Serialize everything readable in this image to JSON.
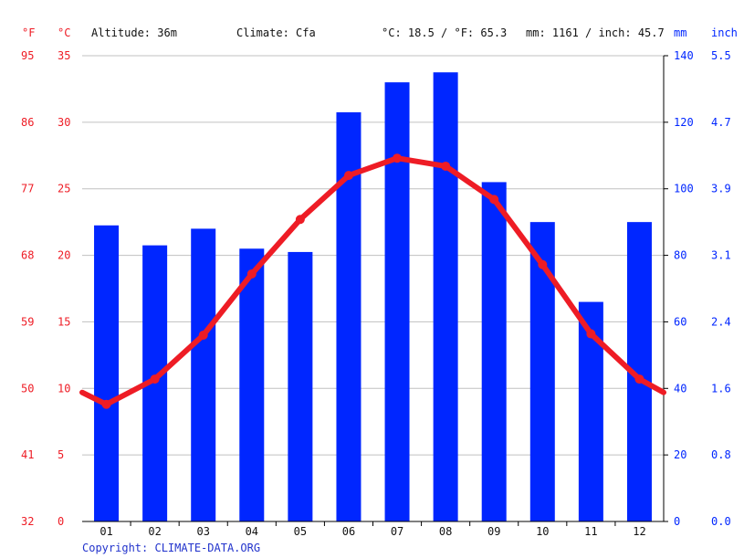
{
  "header": {
    "altitude": "Altitude: 36m",
    "climate": "Climate: Cfa",
    "avg_temp": "°C: 18.5 / °F: 65.3",
    "precip": "mm: 1161 / inch: 45.7"
  },
  "units": {
    "f": "°F",
    "c": "°C",
    "mm": "mm",
    "inch": "inch"
  },
  "copyright": "Copyright: CLIMATE-DATA.ORG",
  "colors": {
    "precip": "#0026ff",
    "temp": "#ee1c25",
    "grid": "#c0c0c0",
    "axis": "#000000"
  },
  "chart_data": {
    "type": "bar",
    "categories": [
      "01",
      "02",
      "03",
      "04",
      "05",
      "06",
      "07",
      "08",
      "09",
      "10",
      "11",
      "12"
    ],
    "series": [
      {
        "type": "bar",
        "axis": "right",
        "values": [
          89,
          83,
          88,
          82,
          81,
          123,
          132,
          135,
          102,
          90,
          66,
          90
        ]
      },
      {
        "type": "line",
        "axis": "left",
        "values": [
          8.8,
          10.7,
          14.0,
          18.6,
          22.7,
          26.0,
          27.3,
          26.7,
          24.2,
          19.3,
          14.1,
          10.7
        ]
      }
    ],
    "temp_edges": [
      9.7,
      9.7
    ],
    "y_left": {
      "label": "°C",
      "ylim": [
        0,
        35
      ],
      "ticks": [
        "0",
        "5",
        "10",
        "15",
        "20",
        "25",
        "30",
        "35"
      ]
    },
    "y_left_f": {
      "label": "°F",
      "ticks": [
        "32",
        "41",
        "50",
        "59",
        "68",
        "77",
        "86",
        "95"
      ]
    },
    "y_right": {
      "label": "mm",
      "ylim": [
        0,
        140
      ],
      "ticks": [
        "0",
        "20",
        "40",
        "60",
        "80",
        "100",
        "120",
        "140"
      ]
    },
    "y_right_inch": {
      "label": "inch",
      "ticks": [
        "0.0",
        "0.8",
        "1.6",
        "2.4",
        "3.1",
        "3.9",
        "4.7",
        "5.5"
      ]
    },
    "grid": true
  }
}
